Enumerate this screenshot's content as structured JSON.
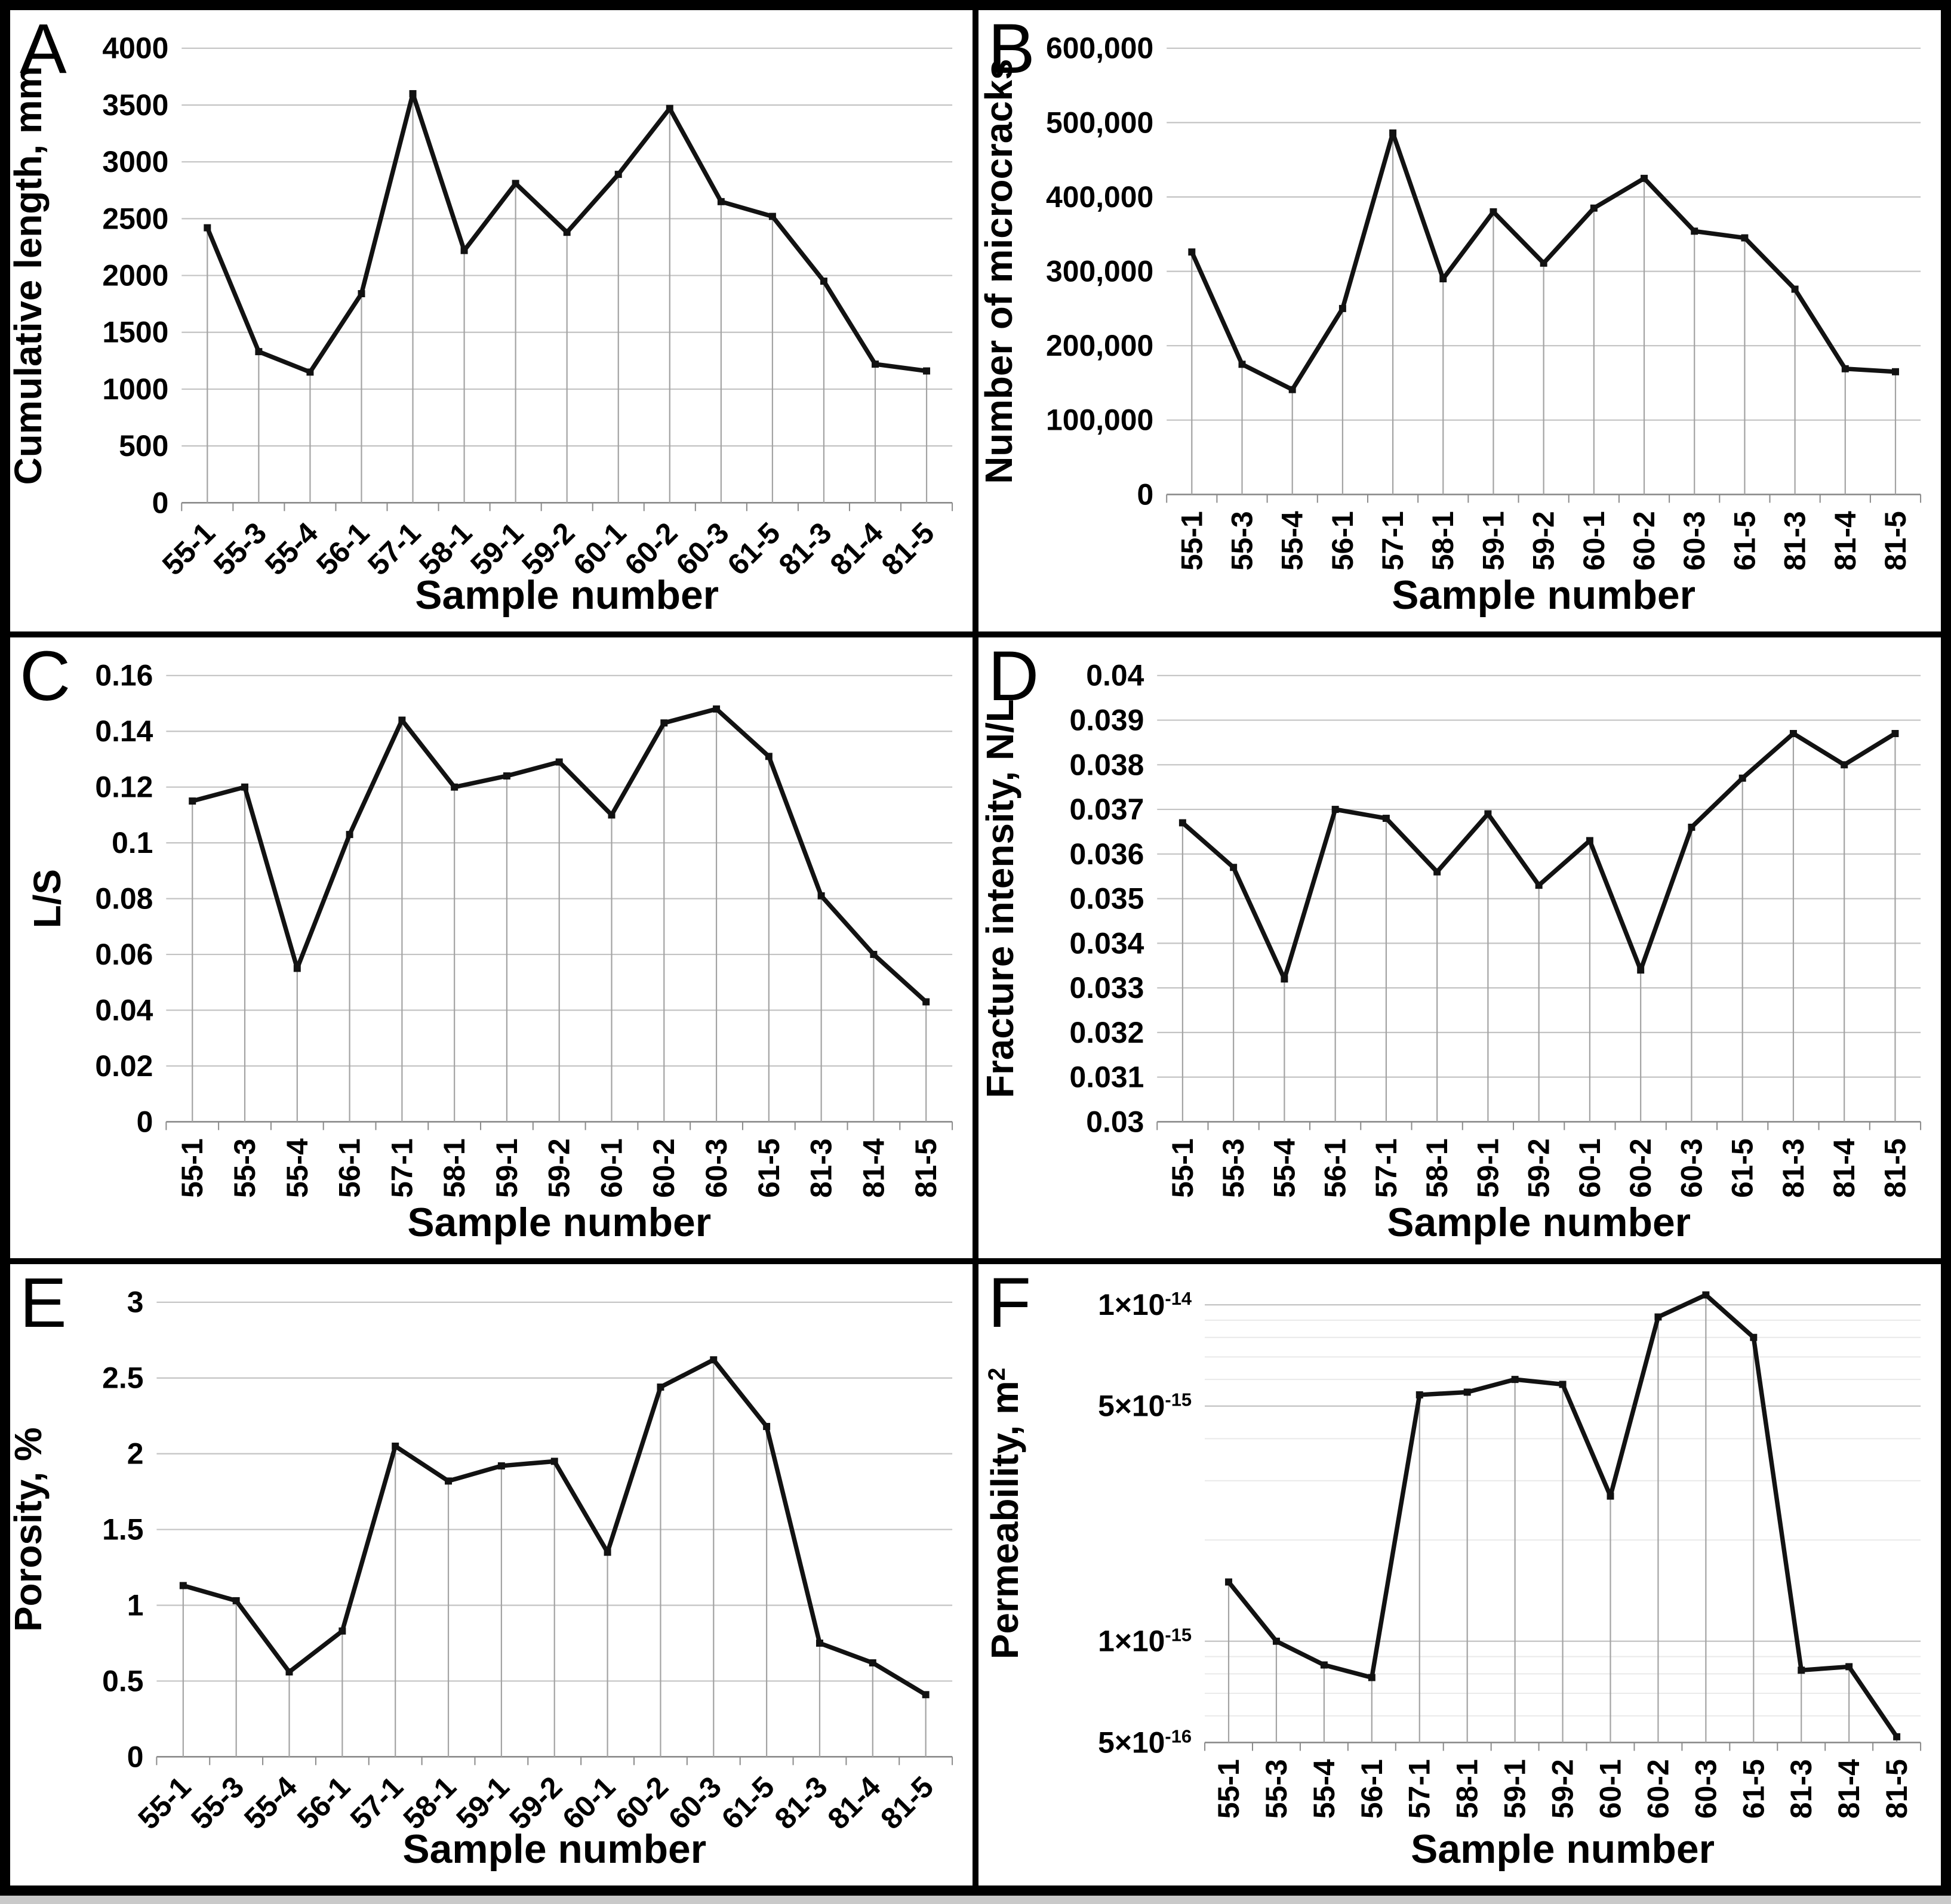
{
  "colors": {
    "line": "#121212",
    "grid": "#c3c3c3",
    "minor_grid": "#e9e9e9",
    "drop_line": "#a3a3a3",
    "baseline": "#8a8a8a",
    "text": "#000000",
    "background": "#ffffff",
    "border": "#000000"
  },
  "chart_data": [
    {
      "panel": "A",
      "type": "line",
      "xlabel": "Sample number",
      "ylabel": "Cumulative length, mm",
      "categories": [
        "55-1",
        "55-3",
        "55-4",
        "56-1",
        "57-1",
        "58-1",
        "59-1",
        "59-2",
        "60-1",
        "60-2",
        "60-3",
        "61-5",
        "81-3",
        "81-4",
        "81-5"
      ],
      "values": [
        2420,
        1330,
        1150,
        1840,
        3600,
        2220,
        2810,
        2380,
        2890,
        3470,
        2650,
        2520,
        1950,
        1220,
        1160
      ],
      "yscale": "linear",
      "ylim": [
        0,
        4000
      ],
      "yticks": [
        0,
        500,
        1000,
        1500,
        2000,
        2500,
        3000,
        3500,
        4000
      ],
      "ytick_labels": [
        "0",
        "500",
        "1000",
        "1500",
        "2000",
        "2500",
        "3000",
        "3500",
        "4000"
      ],
      "x_tick_rotation": 45,
      "grid": "horizontal",
      "drop_lines": true,
      "legend": "none"
    },
    {
      "panel": "B",
      "type": "line",
      "xlabel": "Sample number",
      "ylabel": "Number of microcracks",
      "categories": [
        "55-1",
        "55-3",
        "55-4",
        "56-1",
        "57-1",
        "58-1",
        "59-1",
        "59-2",
        "60-1",
        "60-2",
        "60-3",
        "61-5",
        "81-3",
        "81-4",
        "81-5"
      ],
      "values": [
        326000,
        175000,
        141000,
        250000,
        486000,
        290000,
        380000,
        311000,
        385000,
        425000,
        354000,
        345000,
        276000,
        169000,
        165000
      ],
      "yscale": "linear",
      "ylim": [
        0,
        600000
      ],
      "yticks": [
        0,
        100000,
        200000,
        300000,
        400000,
        500000,
        600000
      ],
      "ytick_labels": [
        "0",
        "100,000",
        "200,000",
        "300,000",
        "400,000",
        "500,000",
        "600,000"
      ],
      "x_tick_rotation": 90,
      "grid": "horizontal",
      "drop_lines": true,
      "legend": "none"
    },
    {
      "panel": "C",
      "type": "line",
      "xlabel": "Sample number",
      "ylabel": "L/S",
      "categories": [
        "55-1",
        "55-3",
        "55-4",
        "56-1",
        "57-1",
        "58-1",
        "59-1",
        "59-2",
        "60-1",
        "60-2",
        "60-3",
        "61-5",
        "81-3",
        "81-4",
        "81-5"
      ],
      "values": [
        0.115,
        0.12,
        0.055,
        0.103,
        0.144,
        0.12,
        0.124,
        0.129,
        0.11,
        0.143,
        0.148,
        0.131,
        0.081,
        0.06,
        0.043
      ],
      "yscale": "linear",
      "ylim": [
        0,
        0.16
      ],
      "yticks": [
        0,
        0.02,
        0.04,
        0.06,
        0.08,
        0.1,
        0.12,
        0.14,
        0.16
      ],
      "ytick_labels": [
        "0",
        "0.02",
        "0.04",
        "0.06",
        "0.08",
        "0.1",
        "0.12",
        "0.14",
        "0.16"
      ],
      "x_tick_rotation": 90,
      "grid": "horizontal",
      "drop_lines": true,
      "legend": "none"
    },
    {
      "panel": "D",
      "type": "line",
      "xlabel": "Sample number",
      "ylabel": "Fracture intensity, N/L",
      "categories": [
        "55-1",
        "55-3",
        "55-4",
        "56-1",
        "57-1",
        "58-1",
        "59-1",
        "59-2",
        "60-1",
        "60-2",
        "60-3",
        "61-5",
        "81-3",
        "81-4",
        "81-5"
      ],
      "values": [
        0.0367,
        0.0357,
        0.0332,
        0.037,
        0.0368,
        0.0356,
        0.0369,
        0.0353,
        0.0363,
        0.0334,
        0.0366,
        0.0377,
        0.0387,
        0.038,
        0.0387
      ],
      "yscale": "linear",
      "ylim": [
        0.03,
        0.04
      ],
      "yticks": [
        0.03,
        0.031,
        0.032,
        0.033,
        0.034,
        0.035,
        0.036,
        0.037,
        0.038,
        0.039,
        0.04
      ],
      "ytick_labels": [
        "0.03",
        "0.031",
        "0.032",
        "0.033",
        "0.034",
        "0.035",
        "0.036",
        "0.037",
        "0.038",
        "0.039",
        "0.04"
      ],
      "x_tick_rotation": 90,
      "grid": "horizontal",
      "drop_lines": true,
      "legend": "none"
    },
    {
      "panel": "E",
      "type": "line",
      "xlabel": "Sample number",
      "ylabel": "Porosity, %",
      "categories": [
        "55-1",
        "55-3",
        "55-4",
        "56-1",
        "57-1",
        "58-1",
        "59-1",
        "59-2",
        "60-1",
        "60-2",
        "60-3",
        "61-5",
        "81-3",
        "81-4",
        "81-5"
      ],
      "values": [
        1.13,
        1.03,
        0.56,
        0.83,
        2.05,
        1.82,
        1.92,
        1.95,
        1.35,
        2.44,
        2.62,
        2.18,
        0.75,
        0.62,
        0.41
      ],
      "yscale": "linear",
      "ylim": [
        0,
        3
      ],
      "yticks": [
        0,
        0.5,
        1,
        1.5,
        2,
        2.5,
        3
      ],
      "ytick_labels": [
        "0",
        "0.5",
        "1",
        "1.5",
        "2",
        "2.5",
        "3"
      ],
      "x_tick_rotation": 45,
      "grid": "horizontal",
      "drop_lines": true,
      "legend": "none"
    },
    {
      "panel": "F",
      "type": "line",
      "xlabel": "Sample number",
      "ylabel": "Permeability, m^2",
      "categories": [
        "55-1",
        "55-3",
        "55-4",
        "56-1",
        "57-1",
        "58-1",
        "59-1",
        "59-2",
        "60-1",
        "60-2",
        "60-3",
        "61-5",
        "81-3",
        "81-4",
        "81-5"
      ],
      "values": [
        1.5e-15,
        1e-15,
        8.5e-16,
        7.8e-16,
        5.4e-15,
        5.5e-15,
        6e-15,
        5.8e-15,
        2.7e-15,
        9.2e-15,
        1.07e-14,
        8e-15,
        8.2e-16,
        8.4e-16,
        5.2e-16
      ],
      "yscale": "log",
      "ylim": [
        5e-16,
        1.15e-14
      ],
      "yticks": [
        5e-16,
        1e-15,
        5e-15,
        1e-14
      ],
      "ytick_labels": [
        "5×10^-16",
        "1×10^-15",
        "5×10^-15",
        "1×10^-14"
      ],
      "x_tick_rotation": 90,
      "grid": "horizontal",
      "drop_lines": true,
      "legend": "none"
    }
  ]
}
